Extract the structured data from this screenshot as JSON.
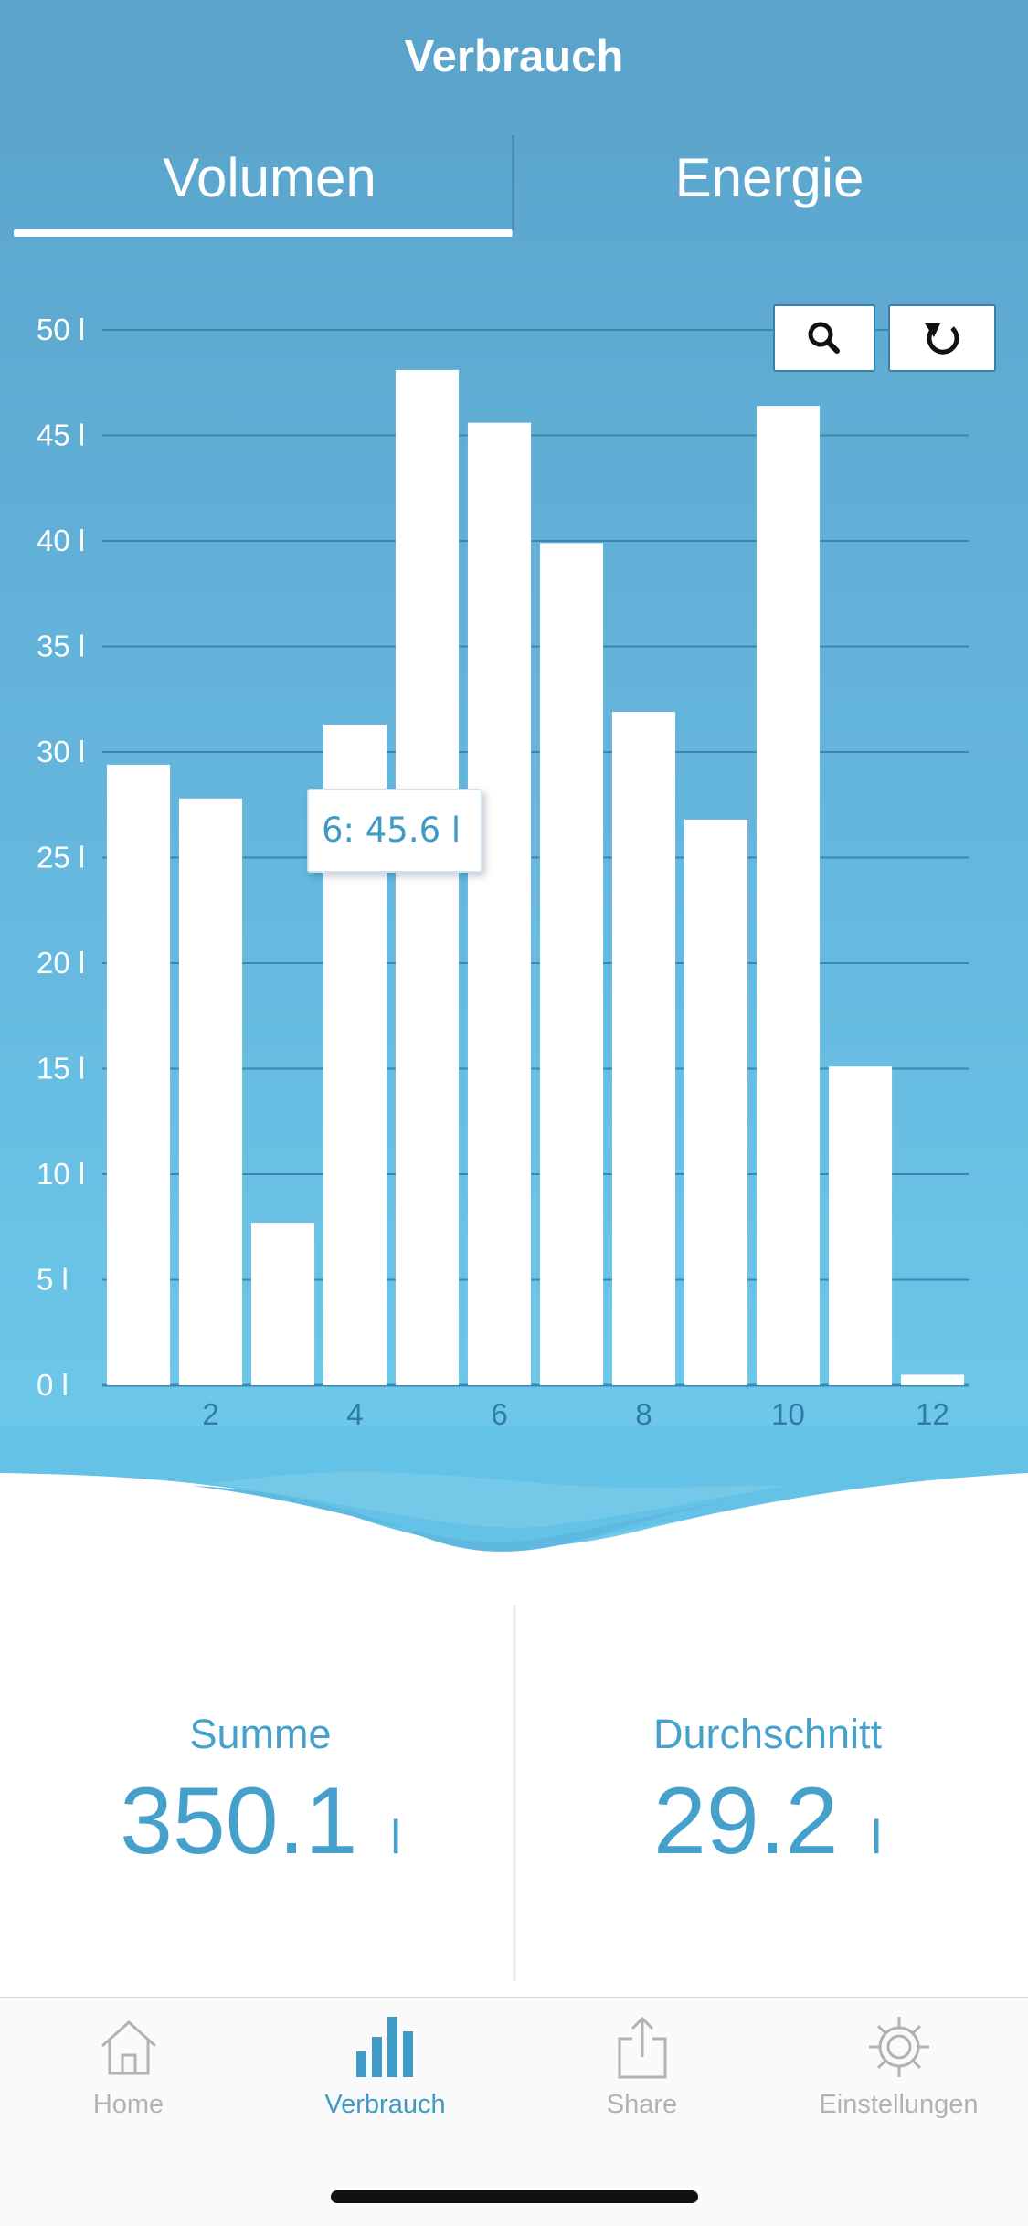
{
  "header": {
    "title": "Verbrauch"
  },
  "tabs": [
    {
      "label": "Volumen",
      "active": true
    },
    {
      "label": "Energie",
      "active": false
    }
  ],
  "toolbar": {
    "zoom_icon": "search-icon",
    "reset_icon": "refresh-icon"
  },
  "tooltip": {
    "text": "6: 45.6 l"
  },
  "chart_data": {
    "type": "bar",
    "x": [
      1,
      2,
      3,
      4,
      5,
      6,
      7,
      8,
      9,
      10,
      11,
      12
    ],
    "values": [
      29.4,
      27.8,
      7.7,
      31.3,
      48.1,
      45.6,
      39.9,
      31.9,
      26.8,
      46.4,
      15.1,
      0.5
    ],
    "x_ticks": [
      "2",
      "4",
      "6",
      "8",
      "10",
      "12"
    ],
    "y_ticks": [
      "0 l",
      "5 l",
      "10 l",
      "15 l",
      "20 l",
      "25 l",
      "30 l",
      "35 l",
      "40 l",
      "45 l",
      "50 l"
    ],
    "ylim": [
      0,
      50
    ],
    "xlim": [
      0.5,
      12.5
    ],
    "grid": true,
    "colors": {
      "bar": "#ffffff",
      "grid": "#3b87b0",
      "axis_text": "#ffffff",
      "x_tick_text": "#2f7ca6"
    }
  },
  "stats": {
    "sum": {
      "label": "Summe",
      "value": "350.1",
      "unit": "l"
    },
    "avg": {
      "label": "Durchschnitt",
      "value": "29.2",
      "unit": "l"
    }
  },
  "tabbar": {
    "items": [
      {
        "label": "Home",
        "icon": "home-icon",
        "active": false
      },
      {
        "label": "Verbrauch",
        "icon": "bar-chart-icon",
        "active": true
      },
      {
        "label": "Share",
        "icon": "share-icon",
        "active": false
      },
      {
        "label": "Einstellungen",
        "icon": "gear-icon",
        "active": false
      }
    ]
  },
  "colors": {
    "accent": "#3f9ac6",
    "inactive": "#b2b2b2",
    "background_top": "#5aa3cb",
    "background_bottom": "#6ecbeb"
  }
}
